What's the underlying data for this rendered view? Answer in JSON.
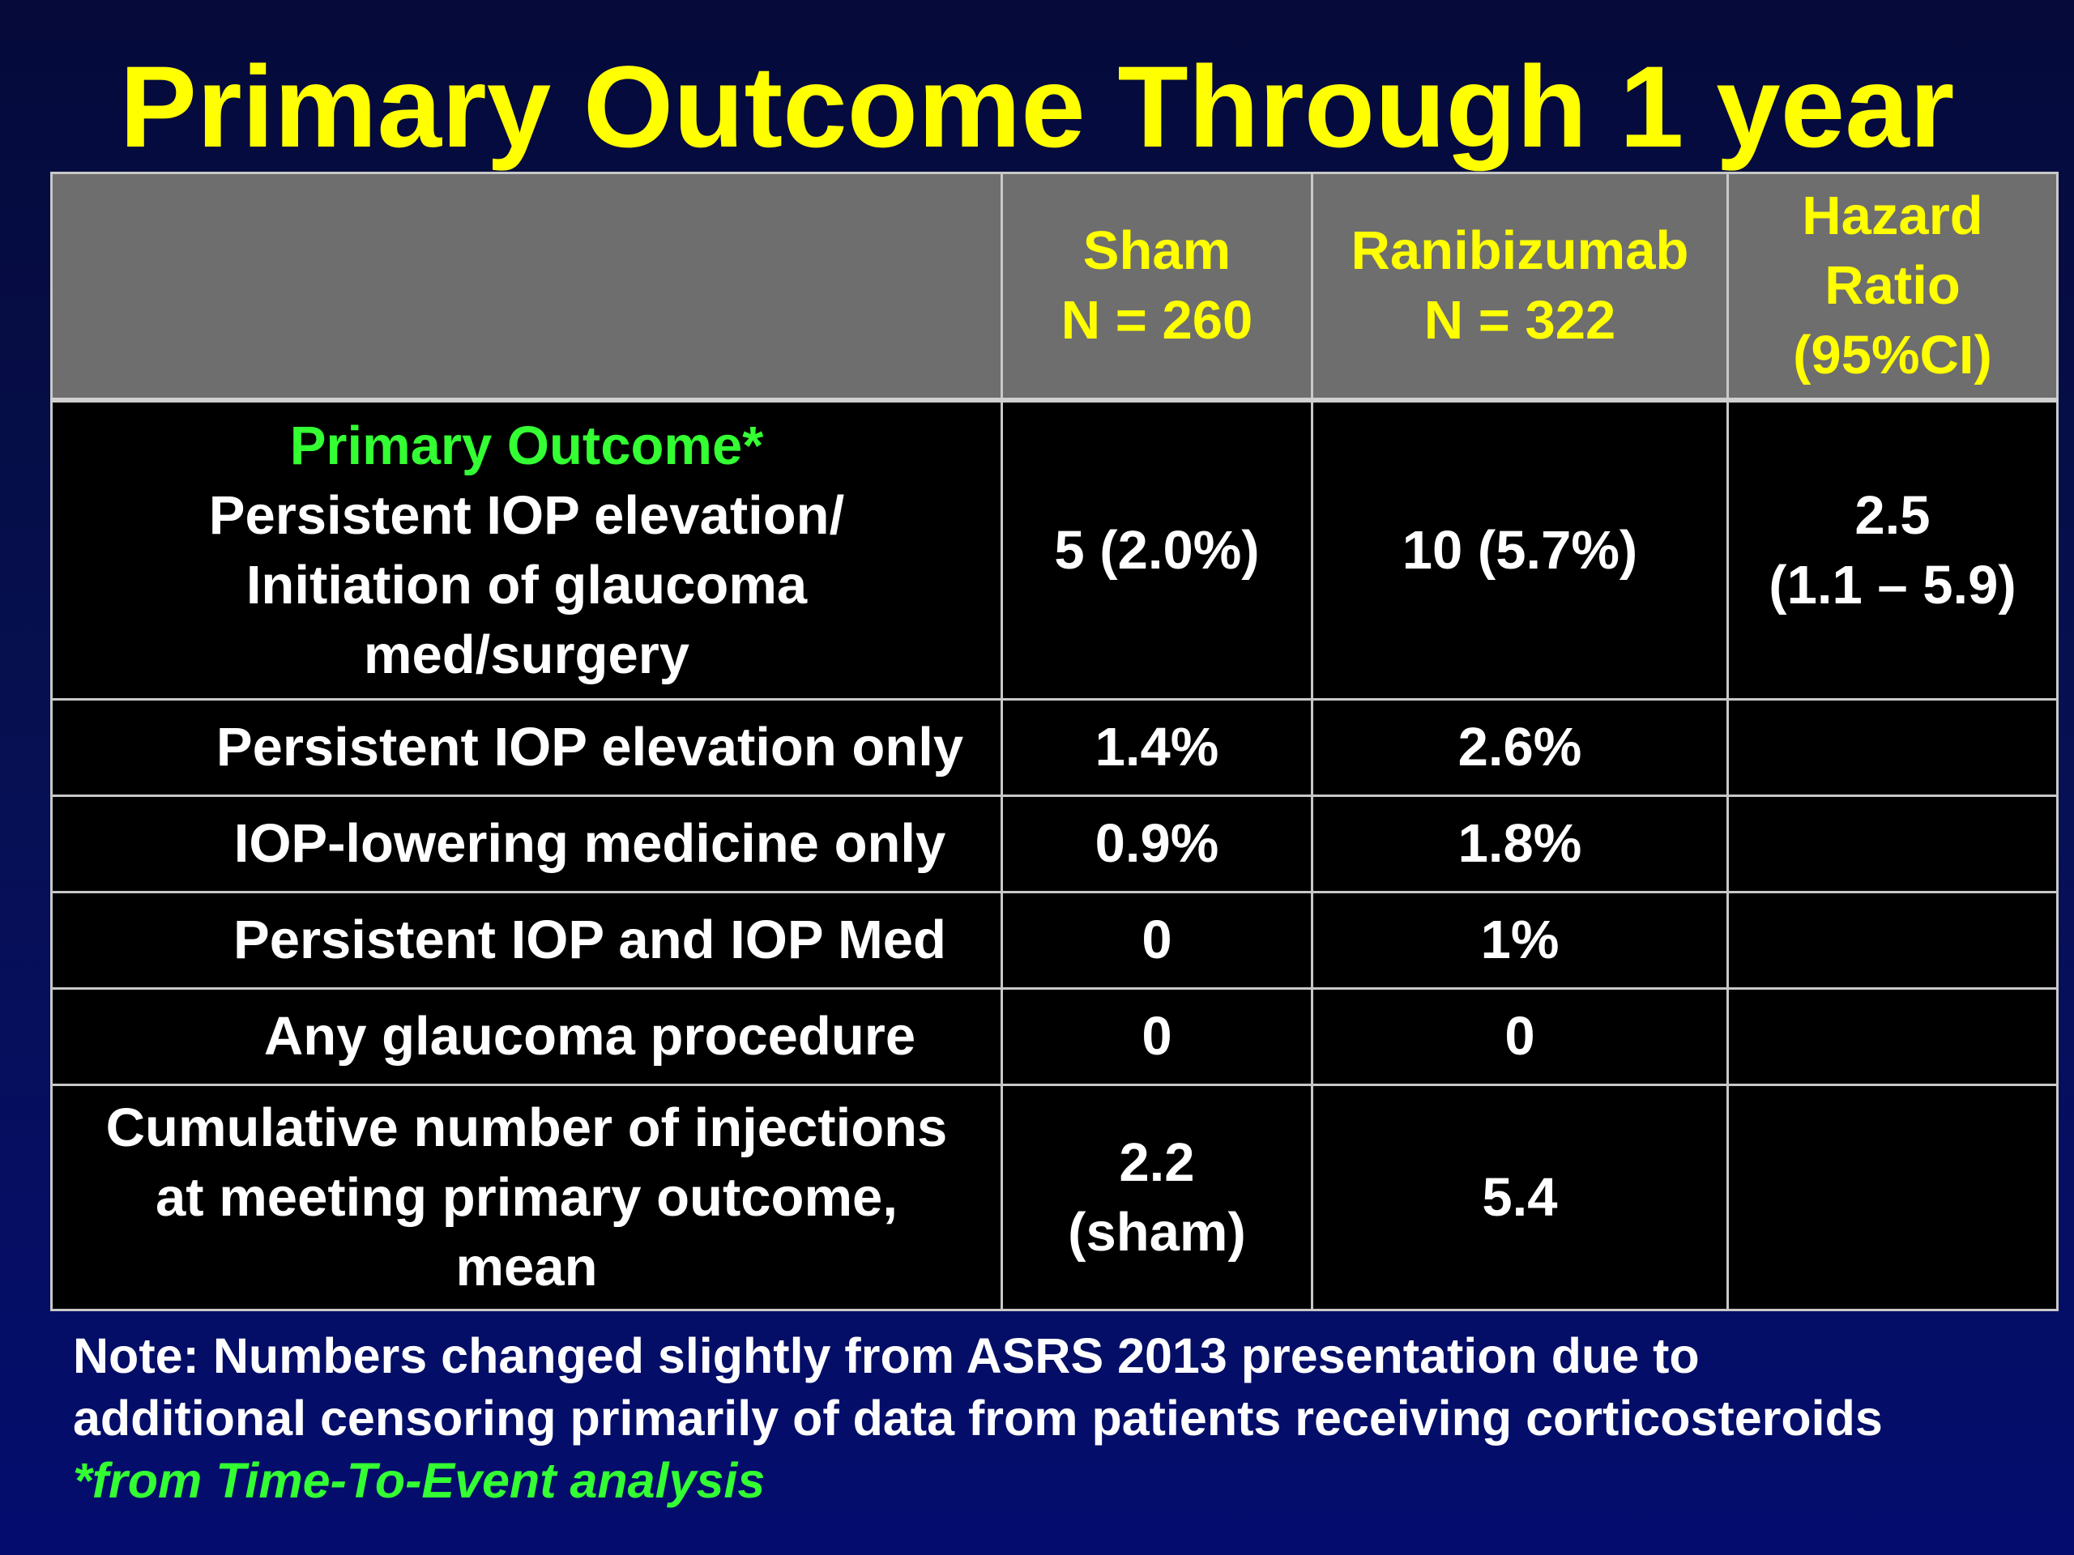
{
  "title": "Primary Outcome Through 1 year",
  "table": {
    "header": {
      "col0": "",
      "col1_line1": "Sham",
      "col1_line2": "N = 260",
      "col2_line1": "Ranibizumab",
      "col2_line2": "N = 322",
      "col3_line1": "Hazard",
      "col3_line2": "Ratio",
      "col3_line3": "(95%CI)"
    },
    "primary": {
      "label_line1": "Primary Outcome*",
      "label_line2": "Persistent IOP elevation/",
      "label_line3": "Initiation of glaucoma",
      "label_line4": "med/surgery",
      "sham": "5 (2.0%)",
      "ranibizumab": "10 (5.7%)",
      "hr_line1": "2.5",
      "hr_line2": "(1.1 – 5.9)"
    },
    "rows": [
      {
        "label": "Persistent IOP elevation only",
        "sham": "1.4%",
        "ranibizumab": "2.6%",
        "hr": ""
      },
      {
        "label": "IOP-lowering medicine only",
        "sham": "0.9%",
        "ranibizumab": "1.8%",
        "hr": ""
      },
      {
        "label": "Persistent IOP and IOP Med",
        "sham": "0",
        "ranibizumab": "1%",
        "hr": ""
      },
      {
        "label": "Any glaucoma procedure",
        "sham": "0",
        "ranibizumab": "0",
        "hr": ""
      }
    ],
    "cumulative": {
      "label_line1": "Cumulative number of injections",
      "label_line2": "at meeting primary outcome,",
      "label_line3": "mean",
      "sham_line1": "2.2",
      "sham_line2": "(sham)",
      "ranibizumab": "5.4",
      "hr": ""
    }
  },
  "note": {
    "line1": "Note: Numbers changed slightly from ASRS 2013 presentation due to",
    "line2": "additional censoring primarily of data from patients receiving corticosteroids",
    "footnote": "*from Time-To-Event analysis"
  },
  "colors": {
    "title": "#ffff00",
    "header_bg": "#6e6e6e",
    "highlight_green": "#33ff33",
    "background": "#061050"
  }
}
